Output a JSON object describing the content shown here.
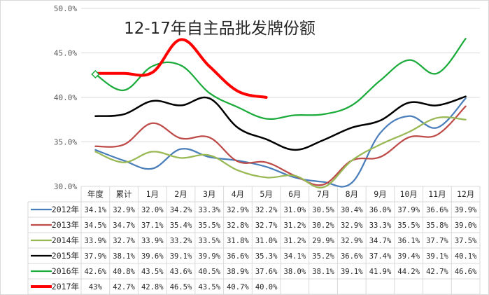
{
  "chart_data": {
    "type": "line",
    "title": "12-17年自主品批发牌份额",
    "categories": [
      "年度",
      "累计",
      "1月",
      "2月",
      "3月",
      "4月",
      "5月",
      "6月",
      "7月",
      "8月",
      "9月",
      "10月",
      "11月",
      "12月"
    ],
    "ylim": [
      30.0,
      50.0
    ],
    "yticks": [
      "30.0%",
      "35.0%",
      "40.0%",
      "45.0%",
      "50.0%"
    ],
    "ytick_values": [
      30,
      35,
      40,
      45,
      50
    ],
    "grid": true,
    "series": [
      {
        "name": "2012年",
        "color": "#4a7ebb",
        "labels": [
          "34.1%",
          "32.9%",
          "32.0%",
          "34.2%",
          "33.3%",
          "32.9%",
          "32.2%",
          "31.0%",
          "30.5%",
          "30.4%",
          "36.0%",
          "37.9%",
          "36.6%",
          "39.9%"
        ],
        "values": [
          34.1,
          32.9,
          32.0,
          34.2,
          33.3,
          32.9,
          32.2,
          31.0,
          30.5,
          30.4,
          36.0,
          37.9,
          36.6,
          39.9
        ]
      },
      {
        "name": "2013年",
        "color": "#be4b48",
        "labels": [
          "34.5%",
          "34.7%",
          "37.1%",
          "35.4%",
          "35.5%",
          "32.8%",
          "32.7%",
          "31.2%",
          "30.2%",
          "32.9%",
          "33.3%",
          "35.5%",
          "35.8%",
          "39.0%"
        ],
        "values": [
          34.5,
          34.7,
          37.1,
          35.4,
          35.5,
          32.8,
          32.7,
          31.2,
          30.2,
          32.9,
          33.3,
          35.5,
          35.8,
          39.0
        ]
      },
      {
        "name": "2014年",
        "color": "#98b954",
        "labels": [
          "33.9%",
          "32.7%",
          "33.9%",
          "33.2%",
          "33.5%",
          "31.8%",
          "31.0%",
          "31.2%",
          "29.9%",
          "32.9%",
          "34.7%",
          "36.1%",
          "37.7%",
          "37.5%"
        ],
        "values": [
          33.9,
          32.7,
          33.9,
          33.2,
          33.5,
          31.8,
          31.0,
          31.2,
          29.9,
          32.9,
          34.7,
          36.1,
          37.7,
          37.5
        ]
      },
      {
        "name": "2015年",
        "color": "#000000",
        "labels": [
          "37.9%",
          "38.1%",
          "39.6%",
          "39.1%",
          "39.9%",
          "36.6%",
          "35.3%",
          "34.1%",
          "35.2%",
          "36.6%",
          "37.4%",
          "39.4%",
          "39.1%",
          "40.1%"
        ],
        "values": [
          37.9,
          38.1,
          39.6,
          39.1,
          39.9,
          36.6,
          35.3,
          34.1,
          35.2,
          36.6,
          37.4,
          39.4,
          39.1,
          40.1
        ]
      },
      {
        "name": "2016年",
        "color": "#1aab3a",
        "labels": [
          "42.6%",
          "40.8%",
          "43.5%",
          "43.6%",
          "40.5%",
          "38.9%",
          "37.6%",
          "38.0%",
          "38.1%",
          "39.1%",
          "41.9%",
          "44.2%",
          "42.7%",
          "46.6%"
        ],
        "values": [
          42.6,
          40.8,
          43.5,
          43.6,
          40.5,
          38.9,
          37.6,
          38.0,
          38.1,
          39.1,
          41.9,
          44.2,
          42.7,
          46.6
        ]
      },
      {
        "name": "2017年",
        "color": "#ff0000",
        "labels": [
          "43%",
          "42.7%",
          "42.8%",
          "46.5%",
          "43.5%",
          "40.7%",
          "40.0%",
          "",
          "",
          "",
          "",
          "",
          "",
          ""
        ],
        "values": [
          42.7,
          42.7,
          42.8,
          46.5,
          43.5,
          40.7,
          40.0,
          null,
          null,
          null,
          null,
          null,
          null,
          null
        ]
      }
    ]
  }
}
